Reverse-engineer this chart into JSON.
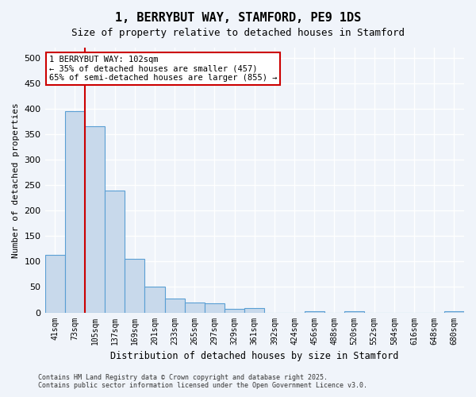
{
  "title": "1, BERRYBUT WAY, STAMFORD, PE9 1DS",
  "subtitle": "Size of property relative to detached houses in Stamford",
  "xlabel": "Distribution of detached houses by size in Stamford",
  "ylabel": "Number of detached properties",
  "footer_line1": "Contains HM Land Registry data © Crown copyright and database right 2025.",
  "footer_line2": "Contains public sector information licensed under the Open Government Licence v3.0.",
  "annotation_line1": "1 BERRYBUT WAY: 102sqm",
  "annotation_line2": "← 35% of detached houses are smaller (457)",
  "annotation_line3": "65% of semi-detached houses are larger (855) →",
  "property_size": 102,
  "bar_color": "#c8d9eb",
  "bar_edge_color": "#5a9fd4",
  "vline_color": "#cc0000",
  "annotation_box_color": "#cc0000",
  "background_color": "#f0f4fa",
  "grid_color": "#ffffff",
  "categories": [
    "41sqm",
    "73sqm",
    "105sqm",
    "137sqm",
    "169sqm",
    "201sqm",
    "233sqm",
    "265sqm",
    "297sqm",
    "329sqm",
    "361sqm",
    "392sqm",
    "424sqm",
    "456sqm",
    "488sqm",
    "520sqm",
    "552sqm",
    "584sqm",
    "616sqm",
    "648sqm",
    "680sqm"
  ],
  "values": [
    113,
    396,
    365,
    240,
    105,
    50,
    27,
    20,
    18,
    7,
    8,
    0,
    0,
    3,
    0,
    2,
    0,
    0,
    0,
    0,
    2
  ],
  "ylim": [
    0,
    520
  ],
  "yticks": [
    0,
    50,
    100,
    150,
    200,
    250,
    300,
    350,
    400,
    450,
    500
  ],
  "vline_x_index": 1.5,
  "figsize": [
    6.0,
    5.0
  ],
  "dpi": 100
}
